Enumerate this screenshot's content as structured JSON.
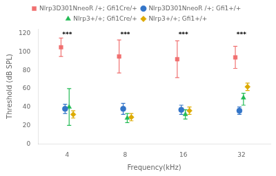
{
  "chart_data": {
    "type": "scatter",
    "categories": [
      "4",
      "8",
      "16",
      "32"
    ],
    "xlabel": "Frequency(kHz)",
    "ylabel": "Threshold (dB SPL)",
    "series": [
      {
        "name": "Nlrp3D301NneoR /+; Gfi1Cre/+",
        "color": "#F07070",
        "marker": "square",
        "values": [
          105,
          95,
          92,
          94
        ],
        "yerr_low": [
          10,
          18,
          20,
          12
        ],
        "yerr_high": [
          10,
          18,
          20,
          12
        ]
      },
      {
        "name": "Nlrp3D301NneoR /+; Gfi1+/+",
        "color": "#3375C8",
        "marker": "circle",
        "values": [
          38,
          38,
          37,
          36
        ],
        "yerr_low": [
          5,
          6,
          5,
          4
        ],
        "yerr_high": [
          5,
          6,
          5,
          4
        ]
      },
      {
        "name": "Nlrp3+/+; Gfi1Cre/+",
        "color": "#22BB55",
        "marker": "triangle",
        "values": [
          40,
          28,
          32,
          50
        ],
        "yerr_low": [
          20,
          5,
          5,
          8
        ],
        "yerr_high": [
          20,
          5,
          5,
          5
        ]
      },
      {
        "name": "Nlrp3+/+; Gfi1+/+",
        "color": "#DDAA00",
        "marker": "diamond",
        "values": [
          32,
          29,
          36,
          62
        ],
        "yerr_low": [
          4,
          4,
          4,
          4
        ],
        "yerr_high": [
          4,
          4,
          4,
          4
        ]
      }
    ],
    "annotations": [
      {
        "x": "4",
        "y": 122,
        "text": "***"
      },
      {
        "x": "8",
        "y": 122,
        "text": "***"
      },
      {
        "x": "16",
        "y": 122,
        "text": "***"
      },
      {
        "x": "32",
        "y": 122,
        "text": "***"
      }
    ],
    "ylim": [
      0,
      125
    ],
    "yticks": [
      0,
      20,
      40,
      60,
      80,
      100,
      120
    ],
    "grid": false,
    "legend": "top"
  }
}
